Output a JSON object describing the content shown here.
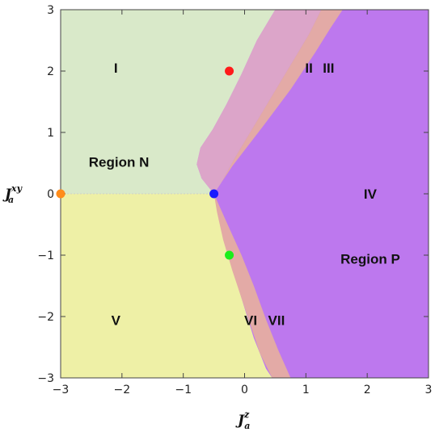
{
  "chart_data": {
    "type": "region",
    "title": "",
    "xlabel": {
      "main": "J",
      "sub": "a",
      "sup": "z"
    },
    "ylabel": {
      "main": "J",
      "sub": "a",
      "sup": "xy"
    },
    "xlim": [
      -3,
      3
    ],
    "ylim": [
      -3,
      3
    ],
    "x_ticks": [
      -3,
      -2,
      -1,
      0,
      1,
      2,
      3
    ],
    "y_ticks": [
      -3,
      -2,
      -1,
      0,
      1,
      2,
      3
    ],
    "x_tick_labels": [
      "−3",
      "−2",
      "−1",
      "0",
      "1",
      "2",
      "3"
    ],
    "y_tick_labels": [
      "−3",
      "−2",
      "−1",
      "0",
      "1",
      "2",
      "3"
    ],
    "grid": false,
    "colors": {
      "region_I": "#d9e9c9",
      "region_V": "#eef0a6",
      "region_IV": "#bd78ee",
      "region_II": "#dca5c9",
      "band": "#e3aaa6"
    },
    "region_labels": [
      {
        "text": "I",
        "x": -2.1,
        "y": 2.05
      },
      {
        "text": "II",
        "x": 1.05,
        "y": 2.05
      },
      {
        "text": "III",
        "x": 1.37,
        "y": 2.05
      },
      {
        "text": "Region N",
        "x": -2.05,
        "y": 0.52
      },
      {
        "text": "IV",
        "x": 2.05,
        "y": 0.0
      },
      {
        "text": "Region P",
        "x": 2.05,
        "y": -1.06
      },
      {
        "text": "V",
        "x": -2.1,
        "y": -2.06
      },
      {
        "text": "VI",
        "x": 0.1,
        "y": -2.06
      },
      {
        "text": "VII",
        "x": 0.52,
        "y": -2.06
      }
    ],
    "points": [
      {
        "name": "red",
        "x": -0.25,
        "y": 2.0,
        "color": "#ff1a1a"
      },
      {
        "name": "orange",
        "x": -3.0,
        "y": 0.0,
        "color": "#ff8c1a"
      },
      {
        "name": "blue",
        "x": -0.5,
        "y": 0.0,
        "color": "#1a1aff"
      },
      {
        "name": "green",
        "x": -0.25,
        "y": -1.0,
        "color": "#1aee1a"
      }
    ],
    "boundaries": {
      "region_I_II": [
        [
          -0.5,
          0.0
        ],
        [
          -0.58,
          0.1
        ],
        [
          -0.7,
          0.25
        ],
        [
          -0.78,
          0.48
        ],
        [
          -0.72,
          0.75
        ],
        [
          -0.52,
          1.05
        ],
        [
          -0.3,
          1.45
        ],
        [
          -0.05,
          1.95
        ],
        [
          0.2,
          2.5
        ],
        [
          0.5,
          3.0
        ]
      ],
      "band_upper_outer": [
        [
          -0.5,
          0.0
        ],
        [
          -0.38,
          0.18
        ],
        [
          -0.15,
          0.6
        ],
        [
          0.15,
          1.1
        ],
        [
          0.45,
          1.6
        ],
        [
          0.75,
          2.1
        ],
        [
          1.05,
          2.6
        ],
        [
          1.25,
          3.0
        ]
      ],
      "band_upper_inner": [
        [
          -0.5,
          0.0
        ],
        [
          -0.2,
          0.45
        ],
        [
          0.3,
          1.1
        ],
        [
          0.75,
          1.7
        ],
        [
          1.15,
          2.3
        ],
        [
          1.4,
          2.7
        ],
        [
          1.6,
          3.0
        ]
      ],
      "region_V_VI": [
        [
          -0.5,
          0.0
        ],
        [
          -0.4,
          -0.45
        ],
        [
          -0.25,
          -1.05
        ],
        [
          -0.05,
          -1.7
        ],
        [
          0.15,
          -2.35
        ],
        [
          0.35,
          -2.85
        ],
        [
          0.45,
          -3.0
        ]
      ],
      "band_lower_outer": [
        [
          -0.5,
          0.0
        ],
        [
          -0.45,
          -0.3
        ],
        [
          -0.35,
          -0.75
        ],
        [
          -0.2,
          -1.25
        ],
        [
          -0.05,
          -1.7
        ],
        [
          0.1,
          -2.15
        ],
        [
          0.25,
          -2.6
        ],
        [
          0.45,
          -3.0
        ]
      ],
      "band_lower_inner": [
        [
          -0.5,
          0.0
        ],
        [
          -0.3,
          -0.45
        ],
        [
          -0.05,
          -1.0
        ],
        [
          0.15,
          -1.5
        ],
        [
          0.35,
          -2.05
        ],
        [
          0.55,
          -2.55
        ],
        [
          0.75,
          -3.0
        ]
      ]
    }
  }
}
